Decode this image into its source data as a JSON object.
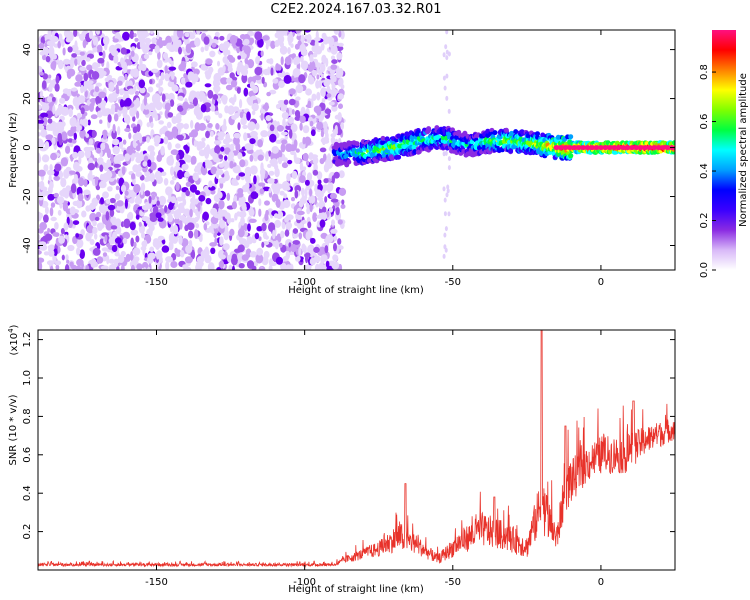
{
  "title": "C2E2.2024.167.03.32.R01",
  "chart_data": [
    {
      "type": "heatmap",
      "xlabel": "Height of straight line (km)",
      "ylabel": "Frequency (Hz)",
      "xlim": [
        -190,
        25
      ],
      "ylim": [
        -50,
        48
      ],
      "xticks": [
        -150,
        -100,
        -50,
        0
      ],
      "yticks": [
        -40,
        -20,
        0,
        20,
        40
      ],
      "colorbar": {
        "label": "Normalized spectral amplitude",
        "range": [
          0,
          0.97
        ],
        "ticks": [
          "0.0",
          "0.2",
          "0.4",
          "0.6",
          "0.8"
        ],
        "tick_values": [
          0,
          0.2,
          0.4,
          0.6,
          0.8
        ],
        "colors": [
          "#ffffff",
          "#d8b8f8",
          "#8a2be2",
          "#3a00ff",
          "#0000ff",
          "#00a0ff",
          "#00ffff",
          "#00ff40",
          "#80ff00",
          "#ffff00",
          "#ff8000",
          "#ff0000",
          "#ff1080"
        ]
      },
      "noise_region_x": [
        -190,
        -87
      ],
      "signal_ridge": [
        {
          "x": -90,
          "freq": -3,
          "amp": 0.35
        },
        {
          "x": -80,
          "freq": -2,
          "amp": 0.55
        },
        {
          "x": -70,
          "freq": 0,
          "amp": 0.6
        },
        {
          "x": -60,
          "freq": 3,
          "amp": 0.55
        },
        {
          "x": -53,
          "freq": 4,
          "amp": 0.5
        },
        {
          "x": -45,
          "freq": 1,
          "amp": 0.45
        },
        {
          "x": -35,
          "freq": 3,
          "amp": 0.6
        },
        {
          "x": -25,
          "freq": 2,
          "amp": 0.6
        },
        {
          "x": -15,
          "freq": 0,
          "amp": 0.75
        },
        {
          "x": -5,
          "freq": 0,
          "amp": 0.9
        },
        {
          "x": 5,
          "freq": 0,
          "amp": 0.92
        },
        {
          "x": 15,
          "freq": 0,
          "amp": 0.95
        },
        {
          "x": 25,
          "freq": 0,
          "amp": 0.95
        }
      ]
    },
    {
      "type": "line",
      "xlabel": "Height of straight line (km)",
      "ylabel": "SNR (10 * v/v)",
      "scale_label": "(x10",
      "scale_exp": "4",
      "scale_close": ")",
      "xlim": [
        -190,
        25
      ],
      "ylim": [
        0,
        1.25
      ],
      "xticks": [
        -150,
        -100,
        -50,
        0
      ],
      "yticks": [
        0.2,
        0.4,
        0.6,
        0.8,
        1.0,
        1.2
      ],
      "ytick_labels": [
        "0.2",
        "0.4",
        "0.6",
        "0.8",
        "1.0",
        "1.2"
      ],
      "color": "#e8322a",
      "envelope": [
        {
          "x": -190,
          "base": 0.02,
          "noise": 0.015
        },
        {
          "x": -90,
          "base": 0.02,
          "noise": 0.015
        },
        {
          "x": -85,
          "base": 0.04,
          "noise": 0.04
        },
        {
          "x": -75,
          "base": 0.07,
          "noise": 0.08
        },
        {
          "x": -68,
          "base": 0.1,
          "noise": 0.15
        },
        {
          "x": -62,
          "base": 0.08,
          "noise": 0.1
        },
        {
          "x": -55,
          "base": 0.03,
          "noise": 0.05
        },
        {
          "x": -48,
          "base": 0.08,
          "noise": 0.12
        },
        {
          "x": -40,
          "base": 0.12,
          "noise": 0.18
        },
        {
          "x": -32,
          "base": 0.1,
          "noise": 0.15
        },
        {
          "x": -25,
          "base": 0.06,
          "noise": 0.12
        },
        {
          "x": -20,
          "base": 0.2,
          "noise": 0.3
        },
        {
          "x": -15,
          "base": 0.08,
          "noise": 0.15
        },
        {
          "x": -12,
          "base": 0.3,
          "noise": 0.25
        },
        {
          "x": -5,
          "base": 0.45,
          "noise": 0.2
        },
        {
          "x": 0,
          "base": 0.5,
          "noise": 0.2
        },
        {
          "x": 8,
          "base": 0.5,
          "noise": 0.2
        },
        {
          "x": 15,
          "base": 0.6,
          "noise": 0.15
        },
        {
          "x": 25,
          "base": 0.68,
          "noise": 0.12
        }
      ],
      "peaks": [
        {
          "x": -66,
          "y": 0.45
        },
        {
          "x": -36,
          "y": 0.38
        },
        {
          "x": -20,
          "y": 1.25
        },
        {
          "x": -12,
          "y": 0.75
        },
        {
          "x": 11,
          "y": 0.88
        }
      ]
    }
  ]
}
